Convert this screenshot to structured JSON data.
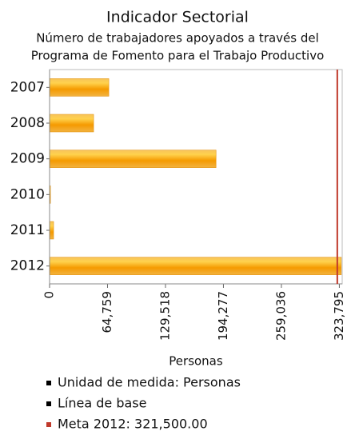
{
  "chart_data": {
    "type": "hbar",
    "title": "Indicador Sectorial",
    "subtitle": [
      "Número de trabajadores apoyados a través del",
      "Programa de Fomento para el Trabajo Productivo"
    ],
    "categories": [
      "2007",
      "2008",
      "2009",
      "2010",
      "2011",
      "2012"
    ],
    "values": [
      66200,
      49200,
      186000,
      1000,
      4500,
      326000
    ],
    "color": "#f5a100",
    "xlim": [
      0,
      327000
    ],
    "xticks": [
      0,
      {
        "value": 64759,
        "label": "64,759"
      },
      {
        "value": 129518,
        "label": "129,518"
      },
      {
        "value": 194277,
        "label": "194,277"
      },
      {
        "value": 259036,
        "label": "259,036"
      },
      {
        "value": 323795,
        "label": "323,795"
      }
    ],
    "xlabel": "Personas",
    "target_line": {
      "value": 321500,
      "color": "#c0392b"
    },
    "legend": [
      {
        "label": "Unidad de medida: Personas",
        "color": "#000000"
      },
      {
        "label": "Línea de base",
        "color": "#000000"
      },
      {
        "label": "Meta 2012: 321,500.00",
        "color": "#c0392b"
      }
    ]
  }
}
